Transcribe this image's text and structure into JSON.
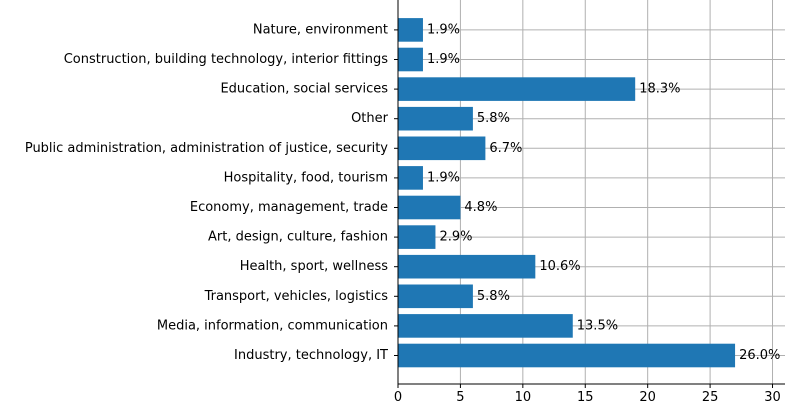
{
  "chart_data": {
    "type": "bar",
    "orientation": "horizontal",
    "categories": [
      "Industry, technology, IT",
      "Media, information, communication",
      "Transport, vehicles, logistics",
      "Health, sport, wellness",
      "Art, design, culture, fashion",
      "Economy, management, trade",
      "Hospitality, food, tourism",
      "Public administration, administration of justice, security",
      "Other",
      "Education, social services",
      "Construction, building technology, interior fittings",
      "Nature, environment"
    ],
    "values": [
      27.0,
      14.0,
      6.0,
      11.0,
      3.0,
      5.0,
      2.0,
      7.0,
      6.0,
      19.0,
      2.0,
      2.0
    ],
    "data_labels": [
      "26.0%",
      "13.5%",
      "5.8%",
      "10.6%",
      "2.9%",
      "4.8%",
      "1.9%",
      "6.7%",
      "5.8%",
      "18.3%",
      "1.9%",
      "1.9%"
    ],
    "x_ticks": [
      "0",
      "5",
      "10",
      "15",
      "20",
      "25",
      "30"
    ],
    "xlim": [
      0,
      31
    ],
    "title": "",
    "xlabel": "",
    "ylabel": "",
    "grid": true,
    "bar_color": "#1f77b4",
    "grid_color": "#b0b0b0"
  }
}
